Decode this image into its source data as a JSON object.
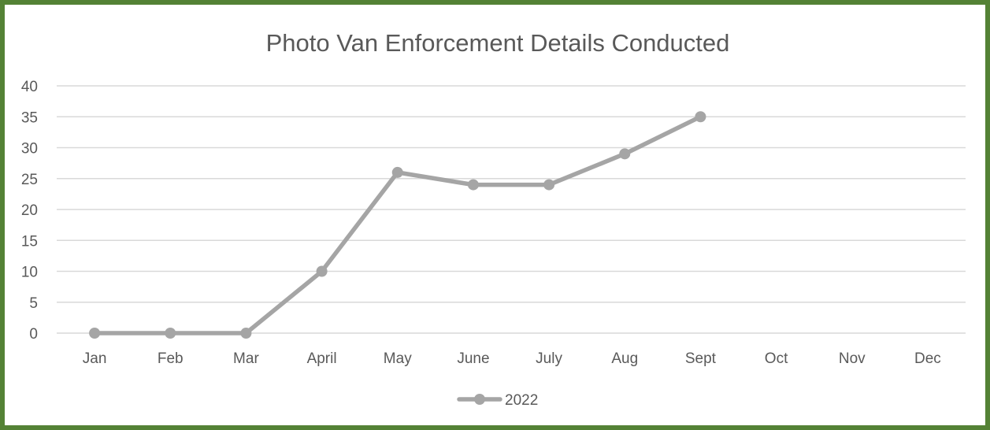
{
  "chart_data": {
    "type": "line",
    "title": "Photo Van Enforcement Details Conducted",
    "xlabel": "",
    "ylabel": "",
    "categories": [
      "Jan",
      "Feb",
      "Mar",
      "April",
      "May",
      "June",
      "July",
      "Aug",
      "Sept",
      "Oct",
      "Nov",
      "Dec"
    ],
    "series": [
      {
        "name": "2022",
        "values": [
          0,
          0,
          0,
          10,
          26,
          24,
          24,
          29,
          35,
          null,
          null,
          null
        ],
        "color": "#a5a5a5"
      }
    ],
    "ylim": [
      0,
      40
    ],
    "yticks": [
      "0",
      "5",
      "10",
      "15",
      "20",
      "25",
      "30",
      "35",
      "40"
    ],
    "grid": true,
    "legend": "bottom",
    "frame_color": "#548235"
  }
}
